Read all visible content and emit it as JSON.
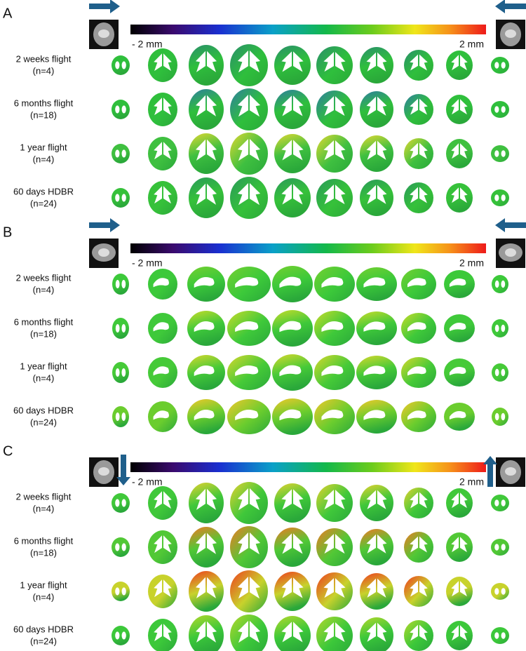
{
  "panels": [
    {
      "label": "A",
      "scale_min": "- 2 mm",
      "scale_max": "2 mm",
      "rows": [
        {
          "condition": "2 weeks flight",
          "n": "(n=4)"
        },
        {
          "condition": "6 months flight",
          "n": "(n=18)"
        },
        {
          "condition": "1 year flight",
          "n": "(n=4)"
        },
        {
          "condition": "60 days HDBR",
          "n": "(n=24)"
        }
      ]
    },
    {
      "label": "B",
      "scale_min": "- 2 mm",
      "scale_max": "2 mm",
      "rows": [
        {
          "condition": "2 weeks flight",
          "n": "(n=4)"
        },
        {
          "condition": "6 months flight",
          "n": "(n=18)"
        },
        {
          "condition": "1 year flight",
          "n": "(n=4)"
        },
        {
          "condition": "60 days HDBR",
          "n": "(n=24)"
        }
      ]
    },
    {
      "label": "C",
      "scale_min": "- 2 mm",
      "scale_max": "2 mm",
      "rows": [
        {
          "condition": "2 weeks flight",
          "n": "(n=4)"
        },
        {
          "condition": "6 months flight",
          "n": "(n=18)"
        },
        {
          "condition": "1 year flight",
          "n": "(n=4)"
        },
        {
          "condition": "60 days HDBR",
          "n": "(n=24)"
        }
      ]
    }
  ]
}
